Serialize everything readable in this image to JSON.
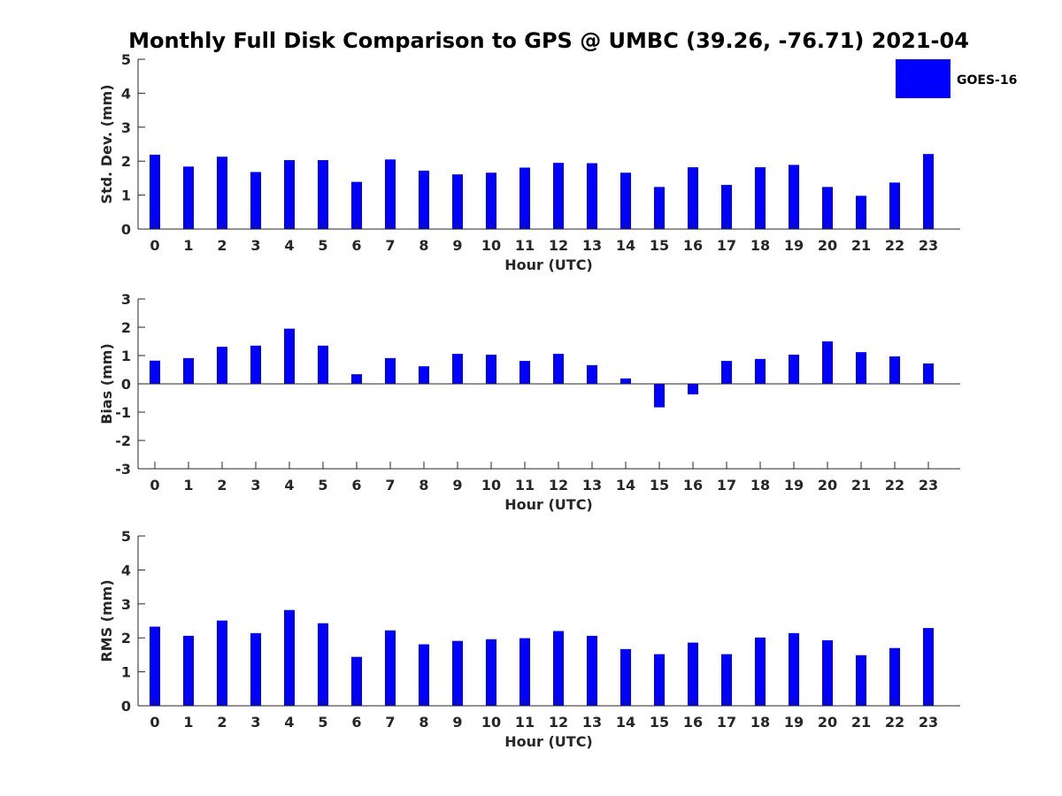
{
  "title": "Monthly Full Disk Comparison to GPS @ UMBC (39.26, -76.71) 2021-04",
  "legend": {
    "label": "GOES-16",
    "color": "#0000ff",
    "position": "top-right"
  },
  "chart_data": [
    {
      "type": "bar",
      "id": "stddev",
      "xlabel": "Hour (UTC)",
      "ylabel": "Std. Dev. (mm)",
      "ylim": [
        0,
        5
      ],
      "yticks": [
        0,
        1,
        2,
        3,
        4,
        5
      ],
      "categories": [
        "0",
        "1",
        "2",
        "3",
        "4",
        "5",
        "6",
        "7",
        "8",
        "9",
        "10",
        "11",
        "12",
        "13",
        "14",
        "15",
        "16",
        "17",
        "18",
        "19",
        "20",
        "21",
        "22",
        "23"
      ],
      "series": [
        {
          "name": "GOES-16",
          "color": "#0000ff",
          "values": [
            2.19,
            1.84,
            2.13,
            1.68,
            2.03,
            2.03,
            1.39,
            2.05,
            1.72,
            1.61,
            1.66,
            1.81,
            1.95,
            1.94,
            1.66,
            1.24,
            1.82,
            1.3,
            1.82,
            1.89,
            1.24,
            0.98,
            1.37,
            2.21
          ]
        }
      ],
      "grid": false
    },
    {
      "type": "bar",
      "id": "bias",
      "xlabel": "Hour (UTC)",
      "ylabel": "Bias (mm)",
      "ylim": [
        -3,
        3
      ],
      "yticks": [
        -3,
        -2,
        -1,
        0,
        1,
        2,
        3
      ],
      "categories": [
        "0",
        "1",
        "2",
        "3",
        "4",
        "5",
        "6",
        "7",
        "8",
        "9",
        "10",
        "11",
        "12",
        "13",
        "14",
        "15",
        "16",
        "17",
        "18",
        "19",
        "20",
        "21",
        "22",
        "23"
      ],
      "series": [
        {
          "name": "GOES-16",
          "color": "#0000ff",
          "values": [
            0.82,
            0.91,
            1.31,
            1.35,
            1.95,
            1.35,
            0.34,
            0.91,
            0.62,
            1.06,
            1.03,
            0.81,
            1.06,
            0.66,
            0.19,
            -0.83,
            -0.37,
            0.81,
            0.88,
            1.03,
            1.5,
            1.12,
            0.97,
            0.72
          ]
        }
      ],
      "grid": false
    },
    {
      "type": "bar",
      "id": "rms",
      "xlabel": "Hour (UTC)",
      "ylabel": "RMS (mm)",
      "ylim": [
        0,
        5
      ],
      "yticks": [
        0,
        1,
        2,
        3,
        4,
        5
      ],
      "categories": [
        "0",
        "1",
        "2",
        "3",
        "4",
        "5",
        "6",
        "7",
        "8",
        "9",
        "10",
        "11",
        "12",
        "13",
        "14",
        "15",
        "16",
        "17",
        "18",
        "19",
        "20",
        "21",
        "22",
        "23"
      ],
      "series": [
        {
          "name": "GOES-16",
          "color": "#0000ff",
          "values": [
            2.33,
            2.06,
            2.51,
            2.14,
            2.82,
            2.43,
            1.44,
            2.22,
            1.81,
            1.91,
            1.96,
            1.99,
            2.2,
            2.06,
            1.67,
            1.52,
            1.86,
            1.52,
            2.01,
            2.14,
            1.93,
            1.49,
            1.7,
            2.29
          ]
        }
      ],
      "grid": false
    }
  ]
}
